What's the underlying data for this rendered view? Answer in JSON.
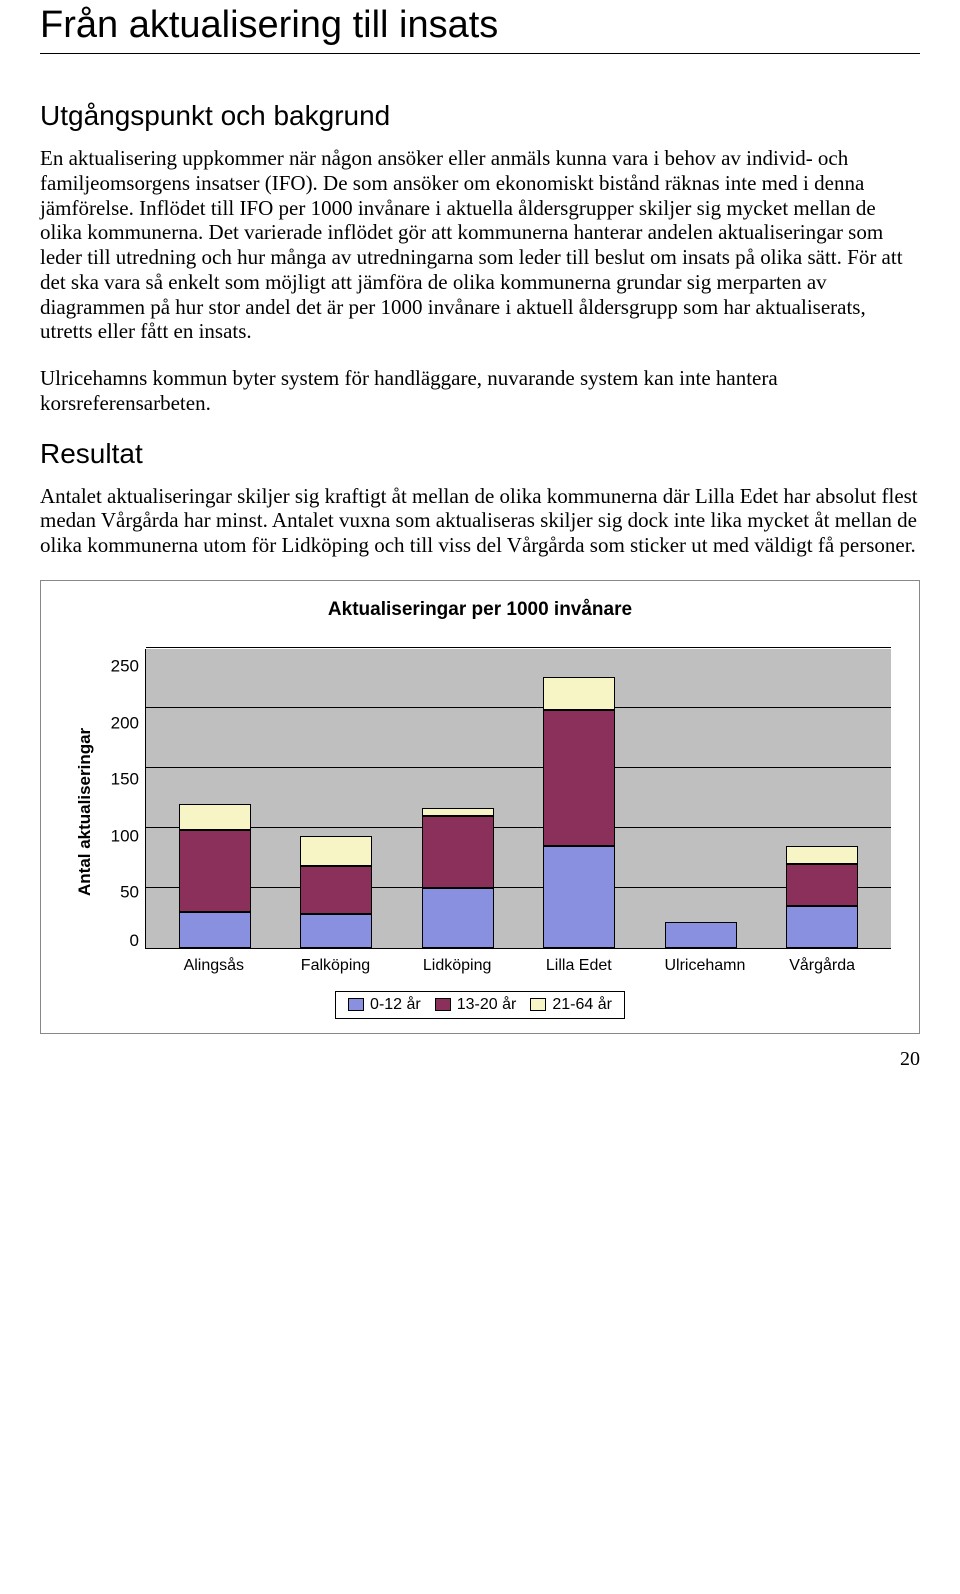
{
  "title": "Från aktualisering till insats",
  "sections": {
    "s1_heading": "Utgångspunkt och bakgrund",
    "s1_p1": "En aktualisering uppkommer när någon ansöker eller anmäls kunna vara i behov av individ- och familjeomsorgens insatser (IFO). De som ansöker om ekonomiskt bistånd räknas inte med i denna jämförelse. Inflödet till IFO per 1000 invånare i aktuella åldersgrupper skiljer sig mycket mellan de olika kommunerna. Det varierade inflödet gör att kommunerna hanterar andelen aktualiseringar som leder till utredning och hur många av utredningarna som leder till beslut om insats på olika sätt. För att det ska vara så enkelt som möjligt att jämföra de olika kommunerna grundar sig merparten av diagrammen på hur stor andel det är per 1000 invånare i aktuell åldersgrupp som har aktualiserats, utretts eller fått en insats.",
    "s1_p2": "Ulricehamns kommun byter system för handläggare, nuvarande system kan inte hantera korsreferensarbeten.",
    "s2_heading": "Resultat",
    "s2_p1": "Antalet aktualiseringar skiljer sig kraftigt åt mellan de olika kommunerna där Lilla Edet har absolut flest medan Vårgårda har minst. Antalet vuxna som aktualiseras skiljer sig dock inte lika mycket åt mellan de olika kommunerna utom för Lidköping och till viss del Vårgårda som sticker ut med väldigt få personer."
  },
  "chart": {
    "title": "Aktualiseringar per 1000 invånare",
    "ylabel": "Antal aktualiseringar",
    "ymax": 250,
    "yticks": [
      250,
      200,
      150,
      100,
      50,
      0
    ],
    "categories": [
      "Alingsås",
      "Falköping",
      "Lidköping",
      "Lilla Edet",
      "Ulricehamn",
      "Vårgårda"
    ],
    "series": [
      {
        "name": "0-12 år",
        "color": "#8a90e0"
      },
      {
        "name": "13-20 år",
        "color": "#8a305a"
      },
      {
        "name": "21-64 år",
        "color": "#f7f5c5"
      }
    ],
    "data": [
      {
        "a": 30,
        "b": 68,
        "c": 22
      },
      {
        "a": 28,
        "b": 40,
        "c": 25
      },
      {
        "a": 50,
        "b": 60,
        "c": 7
      },
      {
        "a": 85,
        "b": 113,
        "c": 28
      },
      {
        "a": 22,
        "b": 0,
        "c": 0
      },
      {
        "a": 35,
        "b": 35,
        "c": 15
      }
    ],
    "plot_bg": "#bfbfbf"
  },
  "page_number": "20"
}
